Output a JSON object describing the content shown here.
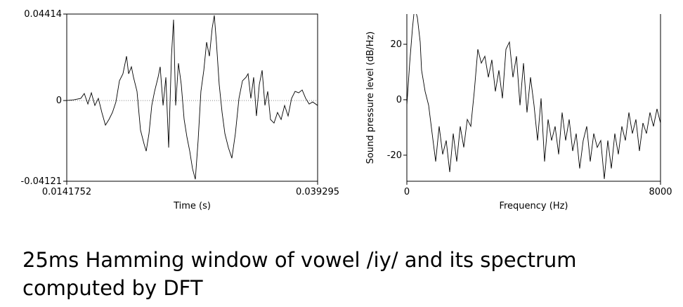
{
  "chart_data": [
    {
      "type": "line",
      "xlabel": "Time (s)",
      "color": "#000000",
      "zero_line": true,
      "box": "full",
      "xlim": [
        0.0141752,
        0.039295
      ],
      "xticks": [
        0.0141752,
        0.039295
      ],
      "ylim": [
        -0.04121,
        0.04414
      ],
      "yticks": [
        -0.04121,
        0,
        0.04414
      ],
      "x": [
        0.01418,
        0.01488,
        0.01558,
        0.01593,
        0.01629,
        0.01664,
        0.01699,
        0.01734,
        0.01769,
        0.01805,
        0.0184,
        0.01875,
        0.0191,
        0.01945,
        0.0198,
        0.02016,
        0.02037,
        0.02065,
        0.02086,
        0.02121,
        0.02156,
        0.02192,
        0.02213,
        0.02241,
        0.02269,
        0.02297,
        0.02332,
        0.02353,
        0.02382,
        0.0241,
        0.02438,
        0.02466,
        0.02487,
        0.02508,
        0.02536,
        0.02564,
        0.02593,
        0.02621,
        0.02649,
        0.02677,
        0.02705,
        0.02733,
        0.02761,
        0.0279,
        0.02818,
        0.02846,
        0.02874,
        0.02895,
        0.02916,
        0.02944,
        0.02973,
        0.03001,
        0.03036,
        0.03071,
        0.03106,
        0.03142,
        0.03177,
        0.03212,
        0.03233,
        0.03261,
        0.03289,
        0.03317,
        0.03346,
        0.03374,
        0.03402,
        0.0343,
        0.03458,
        0.03493,
        0.03528,
        0.03564,
        0.03599,
        0.03634,
        0.03669,
        0.03704,
        0.0374,
        0.03775,
        0.0381,
        0.03845,
        0.0388,
        0.039295
      ],
      "values": [
        0,
        0.00036,
        0.00108,
        0.00359,
        -0.0018,
        0.00395,
        -0.00251,
        0.00108,
        -0.0061,
        -0.01257,
        -0.00969,
        -0.0061,
        -0.00072,
        0.01005,
        0.01364,
        0.02262,
        0.01364,
        0.01723,
        0.01185,
        0.00467,
        -0.01508,
        -0.02226,
        -0.02585,
        -0.01687,
        -0.00251,
        0.00467,
        0.01185,
        0.01723,
        -0.00251,
        0.01185,
        -0.02405,
        0.02262,
        0.04128,
        -0.00251,
        0.01903,
        0.00826,
        -0.00969,
        -0.01867,
        -0.02585,
        -0.03483,
        -0.04021,
        -0.02046,
        0.00467,
        0.01544,
        0.0298,
        0.02262,
        0.03698,
        0.04344,
        0.0298,
        0.00826,
        -0.0061,
        -0.01687,
        -0.02405,
        -0.02944,
        -0.01687,
        0.00108,
        0.01005,
        0.01185,
        0.01364,
        0.00108,
        0.01185,
        -0.0079,
        0.00826,
        0.01544,
        -0.00251,
        0.00467,
        -0.00969,
        -0.01149,
        -0.0061,
        -0.00969,
        -0.00251,
        -0.0079,
        0.00108,
        0.00467,
        0.00395,
        0.00539,
        0.00108,
        -0.0018,
        -0.00072,
        -0.00251
      ]
    },
    {
      "type": "line",
      "xlabel": "Frequency (Hz)",
      "ylabel": "Sound pressure level (dB/Hz)",
      "color": "#000000",
      "zero_line": false,
      "box": "open-top",
      "xlim": [
        0,
        8000
      ],
      "xticks": [
        0,
        8000
      ],
      "ylim": [
        -29.4,
        30.9
      ],
      "yticks": [
        -20,
        0,
        20
      ],
      "x": [
        0,
        89,
        177,
        244,
        332,
        421,
        465,
        576,
        687,
        798,
        909,
        1019,
        1130,
        1241,
        1352,
        1463,
        1573,
        1684,
        1795,
        1906,
        2017,
        2127,
        2238,
        2349,
        2460,
        2571,
        2681,
        2792,
        2903,
        3014,
        3125,
        3235,
        3346,
        3457,
        3568,
        3679,
        3789,
        3900,
        4011,
        4122,
        4233,
        4343,
        4454,
        4565,
        4676,
        4787,
        4897,
        5008,
        5119,
        5230,
        5341,
        5451,
        5562,
        5673,
        5784,
        5895,
        6005,
        6116,
        6227,
        6338,
        6449,
        6559,
        6670,
        6781,
        6892,
        7003,
        7113,
        7224,
        7335,
        7446,
        7557,
        7668,
        7778,
        7889,
        8000
      ],
      "values": [
        -2.0,
        13.2,
        25.8,
        33.4,
        29.6,
        20.8,
        10.6,
        3.0,
        -2.0,
        -12.2,
        -22.3,
        -9.6,
        -19.7,
        -14.7,
        -26.1,
        -12.2,
        -22.3,
        -9.6,
        -17.2,
        -7.1,
        -9.6,
        3.0,
        18.2,
        13.2,
        15.7,
        8.1,
        14.4,
        3.0,
        10.6,
        0.5,
        18.2,
        20.8,
        8.1,
        15.7,
        -2.0,
        13.2,
        -4.6,
        8.1,
        -2.0,
        -14.7,
        0.5,
        -22.3,
        -7.1,
        -14.7,
        -9.6,
        -19.7,
        -4.6,
        -14.7,
        -7.1,
        -18.5,
        -12.2,
        -24.8,
        -14.7,
        -9.6,
        -22.3,
        -12.2,
        -17.2,
        -14.7,
        -28.6,
        -14.7,
        -24.8,
        -12.2,
        -19.7,
        -9.6,
        -14.7,
        -4.6,
        -12.2,
        -7.1,
        -18.5,
        -8.4,
        -12.2,
        -4.6,
        -9.6,
        -3.3,
        -8.4
      ]
    }
  ],
  "caption": "25ms Hamming window of vowel /iy/ and its spectrum computed by DFT"
}
